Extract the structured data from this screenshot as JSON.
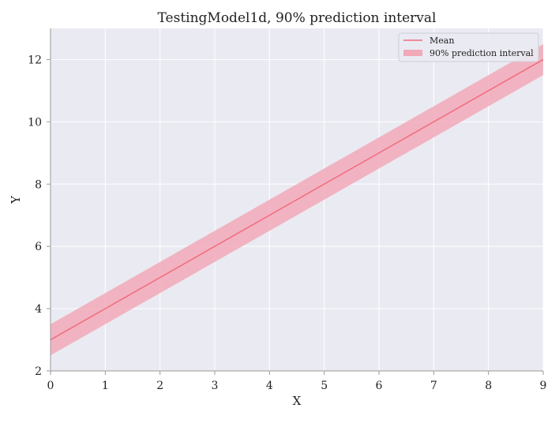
{
  "chart_data": {
    "type": "line",
    "title": "TestingModel1d, 90% prediction interval",
    "xlabel": "X",
    "ylabel": "Y",
    "xlim": [
      0,
      9
    ],
    "ylim": [
      2,
      13
    ],
    "xticks": [
      0,
      1,
      2,
      3,
      4,
      5,
      6,
      7,
      8,
      9
    ],
    "yticks": [
      2,
      4,
      6,
      8,
      10,
      12
    ],
    "grid": true,
    "legend_position": "top-right",
    "series": [
      {
        "name": "Mean",
        "type": "line",
        "color": "#f26b7f",
        "x": [
          0,
          9
        ],
        "y": [
          3,
          12
        ]
      },
      {
        "name": "90% prediction interval",
        "type": "band",
        "color": "#f2a9b8",
        "x": [
          0,
          9
        ],
        "lower": [
          2.5,
          11.5
        ],
        "upper": [
          3.5,
          12.5
        ]
      }
    ],
    "colors": {
      "plot_background": "#eaeaf2",
      "grid": "#ffffff",
      "axis": "#9a9a9a"
    }
  }
}
